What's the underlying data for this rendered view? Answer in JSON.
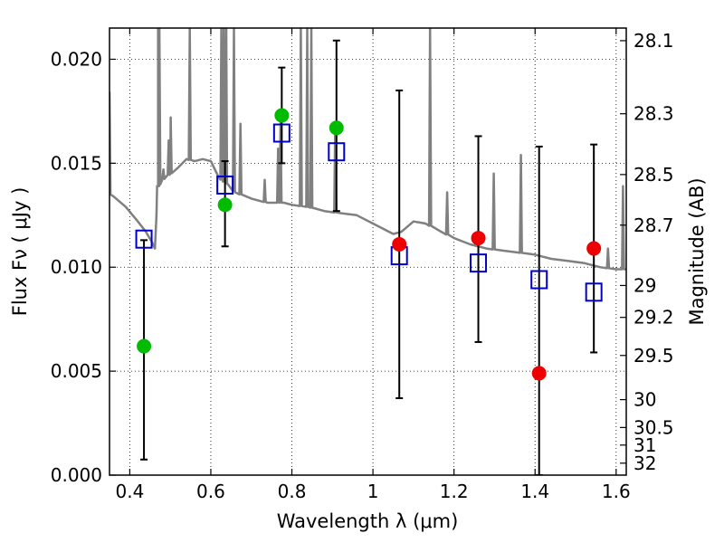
{
  "chart_data": {
    "type": "scatter",
    "xlabel": "Wavelength  λ (μm)",
    "ylabel": "Flux  Fν  ( μJy )",
    "y2label": "Magnitude (AB)",
    "xlim": [
      0.35,
      1.625
    ],
    "ylim": [
      0.0,
      0.0215
    ],
    "grid": true,
    "x_ticks": [
      0.4,
      0.6,
      0.8,
      1.0,
      1.2,
      1.4,
      1.6
    ],
    "x_tick_labels": [
      "0.4",
      "0.6",
      "0.8",
      "1",
      "1.2",
      "1.4",
      "1.6"
    ],
    "y_ticks": [
      0.0,
      0.005,
      0.01,
      0.015,
      0.02
    ],
    "y_tick_labels": [
      "0.000",
      "0.005",
      "0.010",
      "0.015",
      "0.020"
    ],
    "mag_ticks": [
      28.1,
      28.3,
      28.5,
      28.7,
      29,
      29.2,
      29.5,
      30,
      30.5,
      31,
      32
    ],
    "mag_tick_labels": [
      "28.1",
      "28.3",
      "28.5",
      "28.7",
      "29",
      "29.2",
      "29.5",
      "30",
      "30.5",
      "31",
      "32"
    ],
    "colors": {
      "spectrum": "#808080",
      "green_points": "#00bb00",
      "red_points": "#ee0000",
      "model_squares": "#0000cc",
      "errorbars": "#000000"
    },
    "series": [
      {
        "marker": "square",
        "x": [
          0.435,
          0.635,
          0.775,
          0.91,
          1.065,
          1.26,
          1.41,
          1.545
        ],
        "values": [
          0.01135,
          0.01395,
          0.01645,
          0.01555,
          0.01055,
          0.0102,
          0.0094,
          0.0088
        ]
      },
      {
        "marker": "circle-green",
        "x": [
          0.435,
          0.635,
          0.775,
          0.91
        ],
        "values": [
          0.0062,
          0.013,
          0.0173,
          0.0167
        ],
        "err_low": [
          0.00075,
          0.011,
          0.015,
          0.0127
        ],
        "err_high": [
          0.0113,
          0.0151,
          0.0196,
          0.0209
        ]
      },
      {
        "marker": "circle-red",
        "x": [
          1.065,
          1.26,
          1.41,
          1.545
        ],
        "values": [
          0.0111,
          0.0114,
          0.0049,
          0.0109
        ],
        "err_low": [
          0.0037,
          0.0064,
          0.0,
          0.0059
        ],
        "err_high": [
          0.0185,
          0.0163,
          0.0158,
          0.0159
        ]
      }
    ],
    "spectrum": {
      "x": [
        0.35,
        0.36,
        0.39,
        0.42,
        0.44,
        0.455,
        0.462,
        0.466,
        0.47,
        0.48,
        0.5,
        0.52,
        0.54,
        0.56,
        0.58,
        0.6,
        0.62,
        0.64,
        0.66,
        0.7,
        0.74,
        0.78,
        0.8,
        0.84,
        0.88,
        0.92,
        0.96,
        1.0,
        1.03,
        1.05,
        1.07,
        1.1,
        1.13,
        1.16,
        1.2,
        1.24,
        1.28,
        1.32,
        1.36,
        1.4,
        1.44,
        1.48,
        1.52,
        1.56,
        1.6,
        1.625
      ],
      "values": [
        0.0135,
        0.0134,
        0.0129,
        0.0122,
        0.0117,
        0.0112,
        0.0109,
        0.0125,
        0.0139,
        0.0142,
        0.0145,
        0.0148,
        0.0152,
        0.0151,
        0.0152,
        0.0151,
        0.0143,
        0.014,
        0.0136,
        0.0133,
        0.0131,
        0.0131,
        0.013,
        0.0129,
        0.0127,
        0.0126,
        0.0125,
        0.0121,
        0.0118,
        0.0116,
        0.0117,
        0.0122,
        0.0121,
        0.0118,
        0.0114,
        0.0111,
        0.0109,
        0.0108,
        0.0107,
        0.0106,
        0.0104,
        0.0103,
        0.0102,
        0.01,
        0.0099,
        0.0099
      ]
    },
    "spectrum_lines": [
      {
        "x": 0.35,
        "y": 0.0184
      },
      {
        "x": 0.47,
        "y": 0.0215
      },
      {
        "x": 0.473,
        "y": 0.0215
      },
      {
        "x": 0.483,
        "y": 0.0147
      },
      {
        "x": 0.496,
        "y": 0.0161
      },
      {
        "x": 0.501,
        "y": 0.0172
      },
      {
        "x": 0.548,
        "y": 0.0215
      },
      {
        "x": 0.626,
        "y": 0.0215
      },
      {
        "x": 0.632,
        "y": 0.0215
      },
      {
        "x": 0.638,
        "y": 0.0215
      },
      {
        "x": 0.657,
        "y": 0.0215
      },
      {
        "x": 0.673,
        "y": 0.0169
      },
      {
        "x": 0.733,
        "y": 0.0142
      },
      {
        "x": 0.766,
        "y": 0.0157
      },
      {
        "x": 0.772,
        "y": 0.017
      },
      {
        "x": 0.822,
        "y": 0.0215
      },
      {
        "x": 0.838,
        "y": 0.0215
      },
      {
        "x": 0.848,
        "y": 0.0215
      },
      {
        "x": 0.907,
        "y": 0.0168
      },
      {
        "x": 1.141,
        "y": 0.0215
      },
      {
        "x": 1.183,
        "y": 0.0136
      },
      {
        "x": 1.298,
        "y": 0.0145
      },
      {
        "x": 1.365,
        "y": 0.0154
      },
      {
        "x": 1.58,
        "y": 0.0109
      },
      {
        "x": 1.617,
        "y": 0.0139
      }
    ]
  }
}
